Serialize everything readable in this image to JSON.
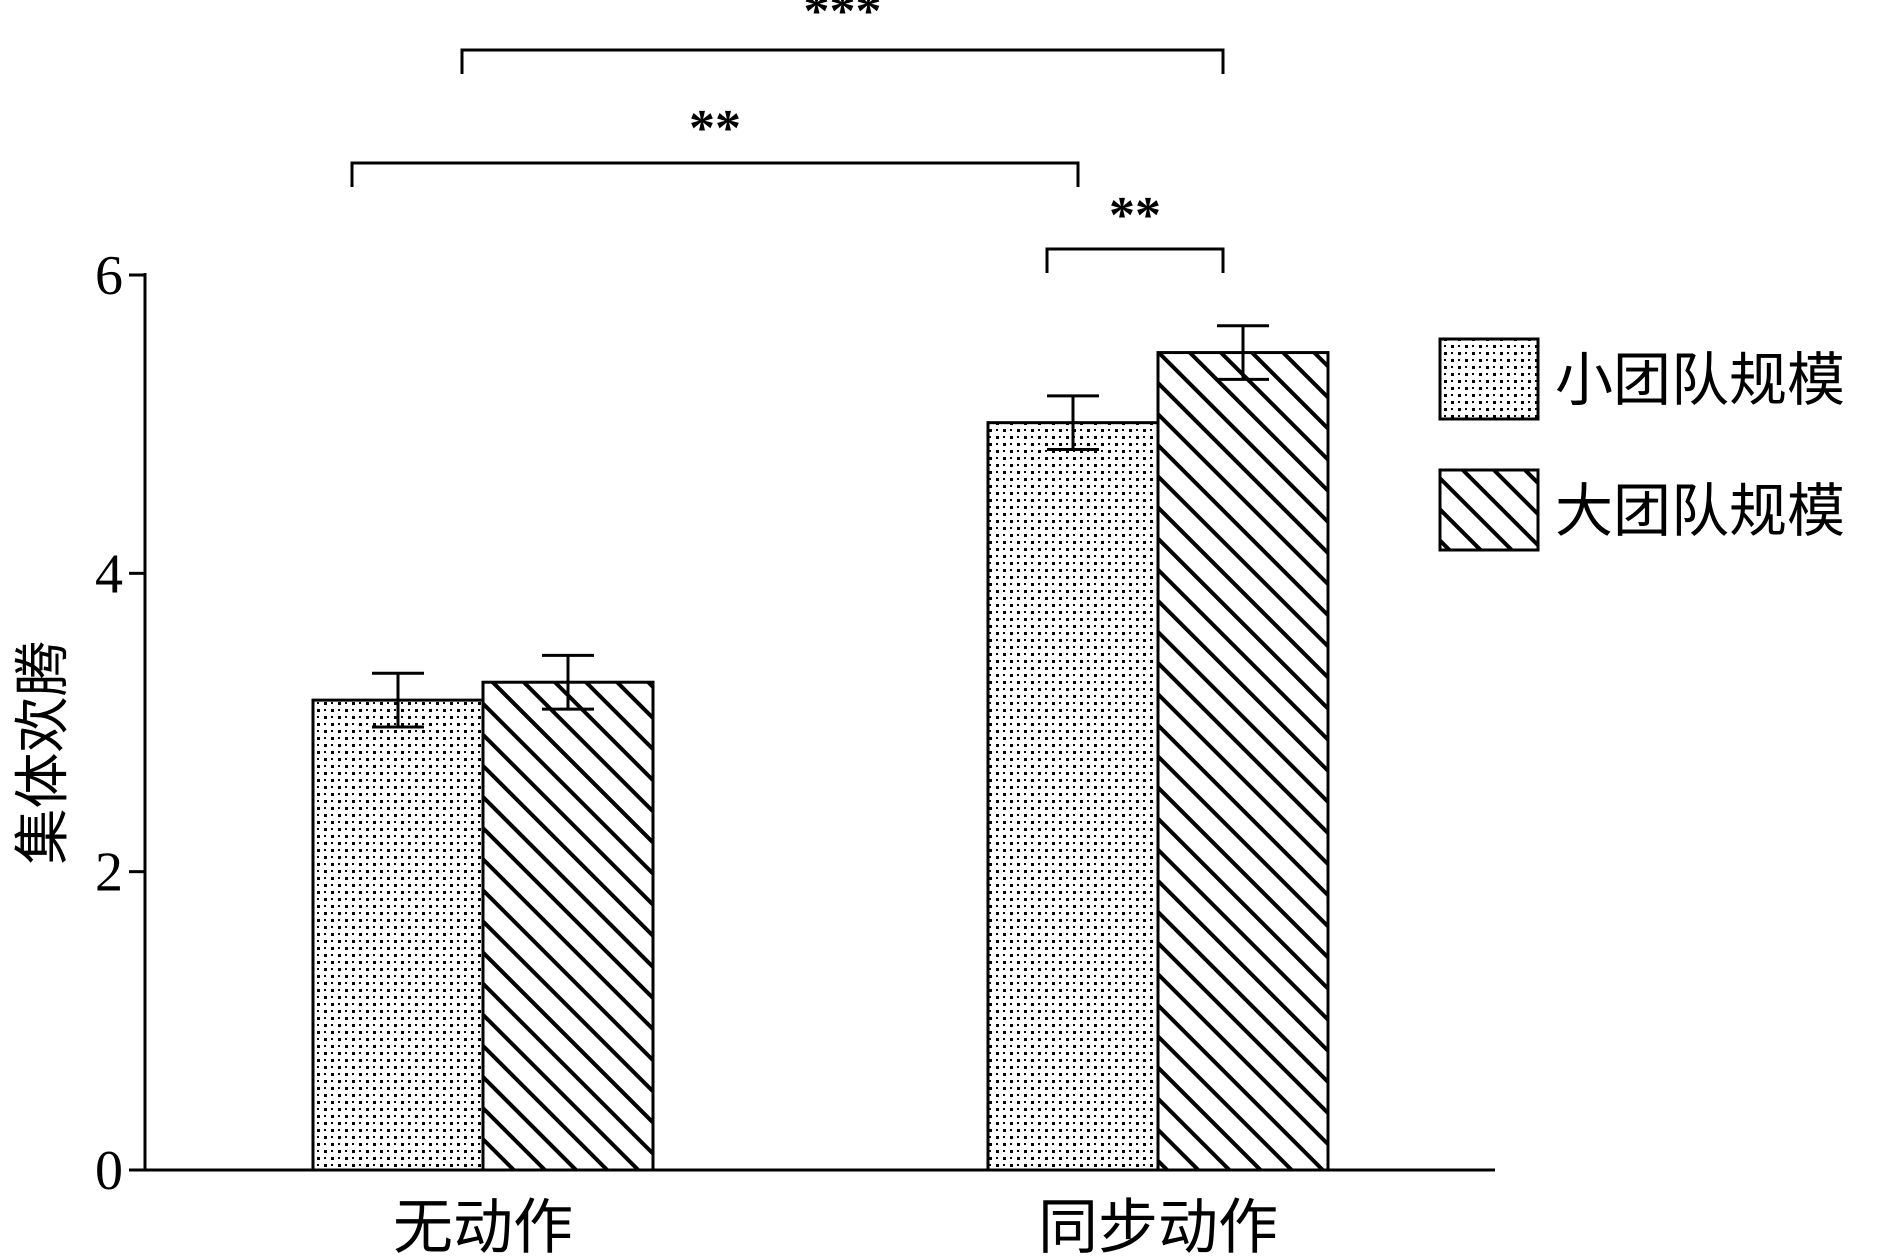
{
  "chart_data": {
    "type": "bar",
    "title": "",
    "xlabel": "",
    "ylabel": "集体欢腾",
    "ylim": [
      0,
      6
    ],
    "yticks": [
      0,
      2,
      4,
      6
    ],
    "categories": [
      "无动作",
      "同步动作"
    ],
    "series": [
      {
        "name": "小团队规模",
        "values": [
          3.15,
          5.01
        ],
        "errors": [
          0.18,
          0.18
        ],
        "pattern": "dots"
      },
      {
        "name": "大团队规模",
        "values": [
          3.27,
          5.48
        ],
        "errors": [
          0.18,
          0.18
        ],
        "pattern": "hatch"
      }
    ],
    "significance": [
      {
        "label": "***",
        "from": {
          "category": 0,
          "series": 1
        },
        "to": {
          "category": 1,
          "series": 1
        }
      },
      {
        "label": "**",
        "from": {
          "category": 0,
          "series": 0
        },
        "to": {
          "category": 1,
          "series": 0
        }
      },
      {
        "label": "**",
        "from": {
          "category": 1,
          "series": 0
        },
        "to": {
          "category": 1,
          "series": 1
        }
      }
    ],
    "legend_position": "right",
    "grid": false
  }
}
